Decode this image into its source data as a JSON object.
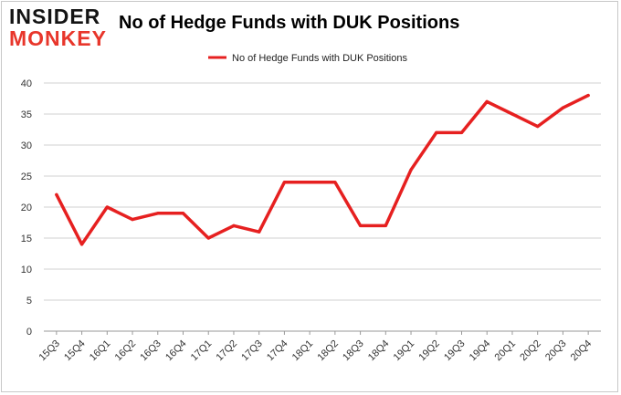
{
  "logo": {
    "line1": "INSIDER",
    "line2": "MONKEY"
  },
  "chart_data": {
    "type": "line",
    "title": "No of Hedge Funds with DUK Positions",
    "xlabel": "",
    "ylabel": "",
    "categories": [
      "15Q3",
      "15Q4",
      "16Q1",
      "16Q2",
      "16Q3",
      "16Q4",
      "17Q1",
      "17Q2",
      "17Q3",
      "17Q4",
      "18Q1",
      "18Q2",
      "18Q3",
      "18Q4",
      "19Q1",
      "19Q2",
      "19Q3",
      "19Q4",
      "20Q1",
      "20Q2",
      "20Q3",
      "20Q4"
    ],
    "series": [
      {
        "name": "No of Hedge Funds with DUK Positions",
        "values": [
          22,
          14,
          20,
          18,
          19,
          19,
          15,
          17,
          16,
          24,
          24,
          24,
          17,
          17,
          26,
          32,
          32,
          37,
          35,
          33,
          36,
          38
        ],
        "color": "#e62020"
      }
    ],
    "ylim": [
      0,
      40
    ],
    "yticks": [
      0,
      5,
      10,
      15,
      20,
      25,
      30,
      35,
      40
    ],
    "grid": true,
    "legend": "top-center"
  }
}
